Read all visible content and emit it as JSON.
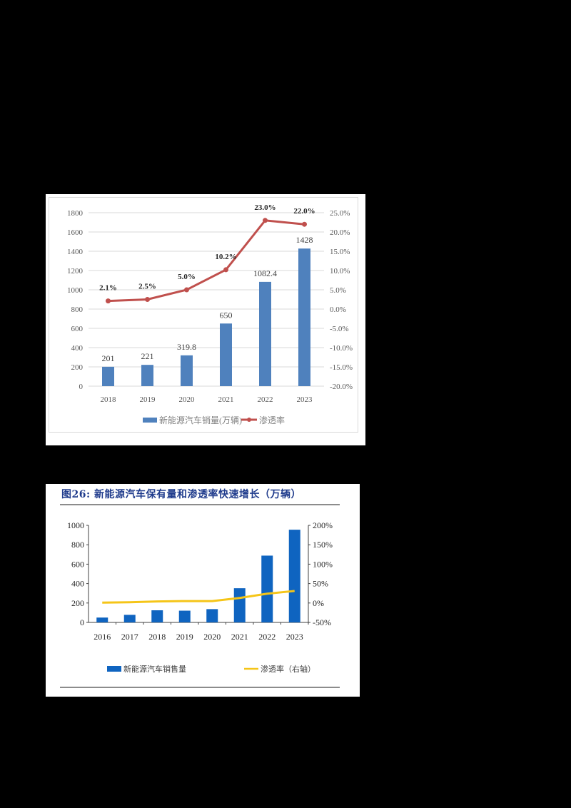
{
  "chart_data": [
    {
      "type": "bar+line",
      "title": "",
      "categories": [
        "2018",
        "2019",
        "2020",
        "2021",
        "2022",
        "2023"
      ],
      "series": [
        {
          "name": "新能源汽车销量(万辆)",
          "type": "bar",
          "axis": "left",
          "color": "#4f81bd",
          "values": [
            201,
            221,
            319.8,
            650,
            1082.4,
            1428
          ],
          "labels": [
            "201",
            "221",
            "319.8",
            "650",
            "1082.4",
            "1428"
          ]
        },
        {
          "name": "渗透率",
          "type": "line",
          "axis": "right",
          "color": "#c0504d",
          "values": [
            2.1,
            2.5,
            5.0,
            10.2,
            23.0,
            22.0
          ],
          "labels": [
            "2.1%",
            "2.5%",
            "5.0%",
            "10.2%",
            "23.0%",
            "22.0%"
          ]
        }
      ],
      "left_axis": {
        "ylim": [
          0,
          1800
        ],
        "ticks": [
          "0",
          "200",
          "400",
          "600",
          "800",
          "1000",
          "1200",
          "1400",
          "1600",
          "1800"
        ]
      },
      "right_axis": {
        "ylim": [
          -20,
          25
        ],
        "ticks": [
          "-20.0%",
          "-15.0%",
          "-10.0%",
          "-5.0%",
          "0.0%",
          "5.0%",
          "10.0%",
          "15.0%",
          "20.0%",
          "25.0%"
        ]
      },
      "grid": true,
      "legend_position": "bottom"
    },
    {
      "type": "bar+line",
      "title": "图26: 新能源汽车保有量和渗透率快速增长（万辆）",
      "categories": [
        "2016",
        "2017",
        "2018",
        "2019",
        "2020",
        "2021",
        "2022",
        "2023"
      ],
      "series": [
        {
          "name": "新能源汽车销售量",
          "type": "bar",
          "axis": "left",
          "color": "#0f64c0",
          "values": [
            50,
            78,
            125,
            121,
            137,
            352,
            688,
            955
          ]
        },
        {
          "name": "渗透率（右轴）",
          "type": "line",
          "axis": "right",
          "color": "#f5c518",
          "values": [
            1,
            2,
            4,
            5,
            5,
            13,
            24,
            31
          ]
        }
      ],
      "left_axis": {
        "ylim": [
          0,
          1000
        ],
        "ticks": [
          "0",
          "200",
          "400",
          "600",
          "800",
          "1000"
        ]
      },
      "right_axis": {
        "ylim": [
          -50,
          200
        ],
        "ticks": [
          "-50%",
          "0%",
          "50%",
          "100%",
          "150%",
          "200%"
        ]
      },
      "grid": false,
      "legend_position": "bottom"
    }
  ],
  "figure2": {
    "title": "图26: 新能源汽车保有量和渗透率快速增长（万辆）"
  }
}
